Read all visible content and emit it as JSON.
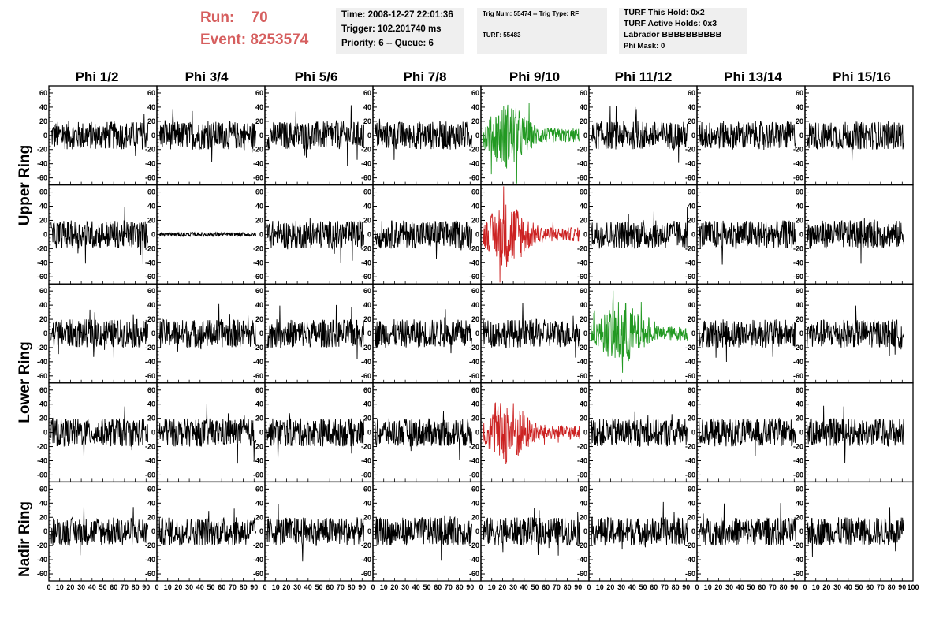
{
  "header": {
    "run_label": "Run:",
    "run_value": "70",
    "event_label": "Event:",
    "event_value": "8253574"
  },
  "info_box_1": {
    "time": "Time: 2008-12-27 22:01:36",
    "trigger": "Trigger: 102.201740 ms",
    "priority": "Priority: 6 -- Queue: 6"
  },
  "info_box_2": {
    "trig": "Trig Num: 55474 -- Trig Type: RF",
    "turf": "TURF: 55483"
  },
  "info_box_3": {
    "hold": "TURF This Hold: 0x2",
    "active": "TURF Active Holds: 0x3",
    "labrador": "Labrador BBBBBBBBBB",
    "phimask": "Phi Mask: 0"
  },
  "chart_data": {
    "type": "line",
    "columns": [
      "Phi 1/2",
      "Phi 3/4",
      "Phi 5/6",
      "Phi 7/8",
      "Phi 9/10",
      "Phi 11/12",
      "Phi 13/14",
      "Phi 15/16"
    ],
    "rows": 5,
    "ring_labels": [
      "Upper Ring",
      "Lower Ring",
      "Nadir Ring"
    ],
    "ylim": [
      -70,
      70
    ],
    "yticks": [
      -60,
      -40,
      -20,
      0,
      20,
      40,
      60
    ],
    "xlim": [
      0,
      100
    ],
    "xticks": [
      0,
      10,
      20,
      30,
      40,
      50,
      60,
      70,
      80,
      90,
      100
    ],
    "xlabel": "",
    "ylabel": "",
    "highlighted_panels": [
      {
        "row": 0,
        "col": 4,
        "color": "#229922"
      },
      {
        "row": 1,
        "col": 4,
        "color": "#cc2222"
      },
      {
        "row": 2,
        "col": 5,
        "color": "#229922"
      },
      {
        "row": 3,
        "col": 4,
        "color": "#cc2222"
      }
    ],
    "flat_panels": [
      {
        "row": 1,
        "col": 1
      }
    ],
    "default_trace_color": "#000000"
  }
}
